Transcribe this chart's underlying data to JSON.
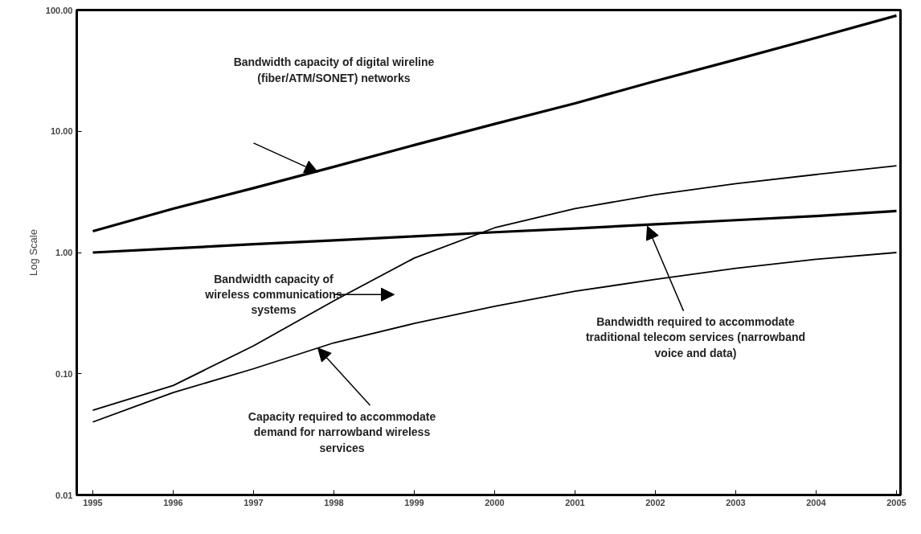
{
  "chart_data": {
    "type": "line",
    "ylabel": "Log Scale",
    "log": "y",
    "grid": false,
    "marker": "none",
    "line_style": "solid",
    "x": [
      1995,
      1996,
      1997,
      1998,
      1999,
      2000,
      2001,
      2002,
      2003,
      2004,
      2005
    ],
    "xlim": [
      1994.8,
      2005.05
    ],
    "xticks": [
      1995,
      1996,
      1997,
      1998,
      1999,
      2000,
      2001,
      2002,
      2003,
      2004,
      2005
    ],
    "ylim": [
      0.01,
      100
    ],
    "yticks": [
      {
        "value": 0.01,
        "label": "0.01"
      },
      {
        "value": 0.1,
        "label": "0.10"
      },
      {
        "value": 1,
        "label": "1.00"
      },
      {
        "value": 10,
        "label": "10.00"
      },
      {
        "value": 100,
        "label": "100.00"
      }
    ],
    "series": [
      {
        "color": "#000000",
        "values": [
          1.5,
          2.3,
          3.4,
          5.1,
          7.7,
          11.5,
          17,
          26,
          39,
          59,
          90
        ]
      },
      {
        "color": "#000000",
        "values": [
          1.0,
          1.08,
          1.17,
          1.26,
          1.36,
          1.47,
          1.58,
          1.71,
          1.85,
          2.0,
          2.2
        ]
      },
      {
        "color": "#000000",
        "values": [
          0.05,
          0.08,
          0.17,
          0.4,
          0.9,
          1.6,
          2.3,
          3.0,
          3.7,
          4.4,
          5.2
        ]
      },
      {
        "color": "#000000",
        "values": [
          0.04,
          0.07,
          0.11,
          0.18,
          0.26,
          0.36,
          0.48,
          0.6,
          0.74,
          0.88,
          1.0
        ]
      }
    ],
    "annotations": [
      "Bandwidth capacity of digital wireline\n(fiber/ATM/SONET) networks",
      "Bandwidth capacity of\nwireless communications\nsystems",
      {
        "text": "Capacity required to accommodate\ndemand for narrowband wireless\nservices",
        "x": 1997.8,
        "y": 0.163
      },
      {
        "text": "Bandwidth required to accommodate\ntraditional telecom services (narrowband\nvoice and data)",
        "x": 2001.9,
        "y": 1.65
      }
    ]
  }
}
